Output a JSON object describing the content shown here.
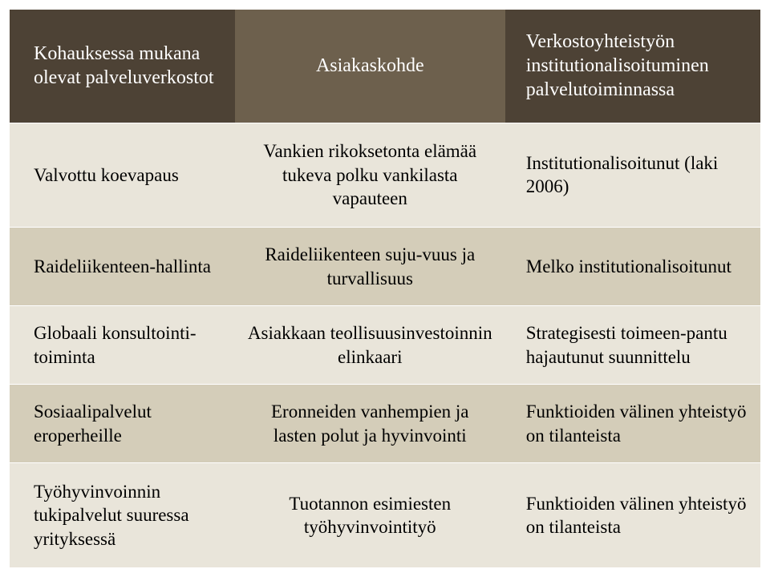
{
  "colors": {
    "header_bg_left": "#4d4235",
    "header_bg_mid": "#6d604d",
    "header_bg_right": "#4d4235",
    "light_row_bg": "#e9e5da",
    "dark_row_bg": "#d4cdb9",
    "row_border": "#ffffff",
    "header_text": "#ffffff",
    "body_text": "#000000"
  },
  "fontsizes": {
    "header": 24,
    "body": 23
  },
  "header": {
    "left": "Kohauksessa mukana olevat palveluverkostot",
    "mid": "Asiakaskohde",
    "right": "Verkostoyhteistyön institutionalisoituminen palvelutoiminnassa"
  },
  "rows": [
    {
      "left": "Valvottu koevapaus",
      "mid": "Vankien rikoksetonta elämää tukeva polku vankilasta vapauteen",
      "right": "Institutionalisoitunut (laki 2006)"
    },
    {
      "left": "Raideliikenteen-hallinta",
      "mid": "Raideliikenteen suju-vuus ja turvallisuus",
      "right": "Melko institutionalisoitunut"
    },
    {
      "left": "Globaali konsultointi-toiminta",
      "mid": "Asiakkaan teollisuusinvestoinnin elinkaari",
      "right": "Strategisesti toimeen-pantu hajautunut suunnittelu"
    },
    {
      "left": "Sosiaalipalvelut eroperheille",
      "mid": "Eronneiden vanhempien ja lasten polut ja hyvinvointi",
      "right": "Funktioiden välinen yhteistyö on tilanteista"
    },
    {
      "left": "Työhyvinvoinnin tukipalvelut suuressa yrityksessä",
      "mid": "Tuotannon esimiesten työhyvinvointityö",
      "right": "Funktioiden välinen yhteistyö on tilanteista"
    }
  ]
}
